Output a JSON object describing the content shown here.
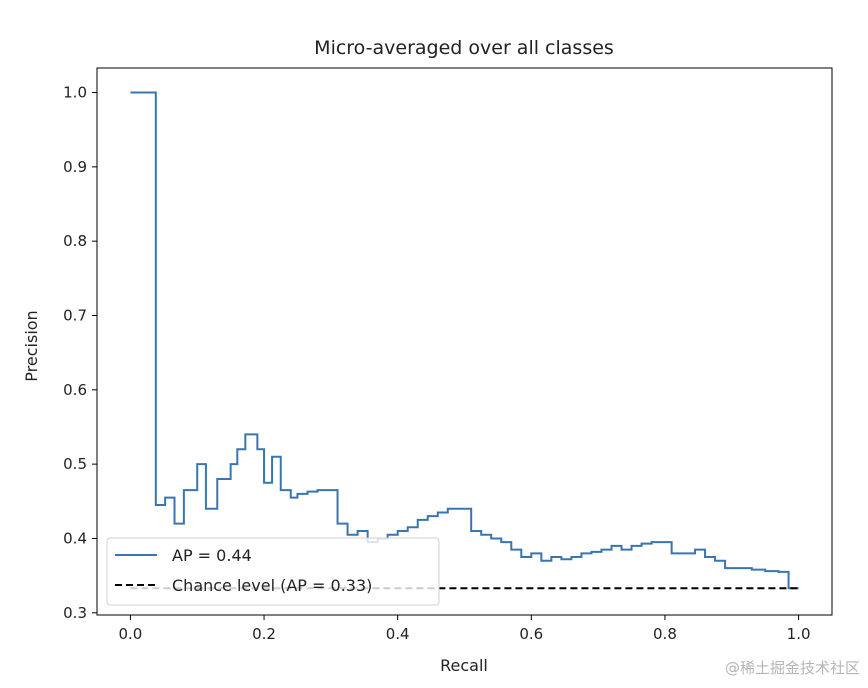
{
  "chart_data": {
    "type": "line",
    "title": "Micro-averaged over all classes",
    "xlabel": "Recall",
    "ylabel": "Precision",
    "xlim": [
      -0.05,
      1.05
    ],
    "ylim": [
      0.297,
      1.033
    ],
    "xticks": [
      "0.0",
      "0.2",
      "0.4",
      "0.6",
      "0.8",
      "1.0"
    ],
    "yticks": [
      "0.3",
      "0.4",
      "0.5",
      "0.6",
      "0.7",
      "0.8",
      "0.9",
      "1.0"
    ],
    "grid": false,
    "legend_placement": "lower-left",
    "series": [
      {
        "name": "AP = 0.44",
        "color": "#3a75b0",
        "style": "step",
        "x": [
          0.0,
          0.038,
          0.052,
          0.066,
          0.08,
          0.1,
          0.113,
          0.13,
          0.15,
          0.16,
          0.172,
          0.19,
          0.2,
          0.212,
          0.225,
          0.24,
          0.25,
          0.265,
          0.28,
          0.293,
          0.31,
          0.325,
          0.34,
          0.355,
          0.37,
          0.385,
          0.4,
          0.415,
          0.43,
          0.445,
          0.46,
          0.475,
          0.49,
          0.51,
          0.525,
          0.54,
          0.555,
          0.57,
          0.585,
          0.6,
          0.615,
          0.63,
          0.645,
          0.66,
          0.675,
          0.69,
          0.705,
          0.72,
          0.735,
          0.75,
          0.765,
          0.78,
          0.795,
          0.81,
          0.825,
          0.845,
          0.86,
          0.875,
          0.89,
          0.91,
          0.93,
          0.95,
          0.97,
          0.985,
          1.0
        ],
        "y": [
          1.0,
          0.445,
          0.455,
          0.42,
          0.465,
          0.5,
          0.44,
          0.48,
          0.5,
          0.52,
          0.54,
          0.52,
          0.475,
          0.51,
          0.465,
          0.455,
          0.46,
          0.463,
          0.465,
          0.465,
          0.42,
          0.405,
          0.41,
          0.395,
          0.4,
          0.405,
          0.41,
          0.415,
          0.425,
          0.43,
          0.435,
          0.44,
          0.44,
          0.41,
          0.405,
          0.4,
          0.395,
          0.385,
          0.375,
          0.38,
          0.37,
          0.375,
          0.372,
          0.375,
          0.38,
          0.382,
          0.385,
          0.39,
          0.385,
          0.39,
          0.393,
          0.395,
          0.395,
          0.38,
          0.38,
          0.385,
          0.375,
          0.37,
          0.36,
          0.36,
          0.358,
          0.356,
          0.355,
          0.333,
          0.333
        ]
      },
      {
        "name": "Chance level (AP = 0.33)",
        "color": "#000000",
        "style": "dashed",
        "x": [
          0.0,
          1.0
        ],
        "y": [
          0.333,
          0.333
        ]
      }
    ]
  },
  "watermark": "@稀土掘金技术社区"
}
